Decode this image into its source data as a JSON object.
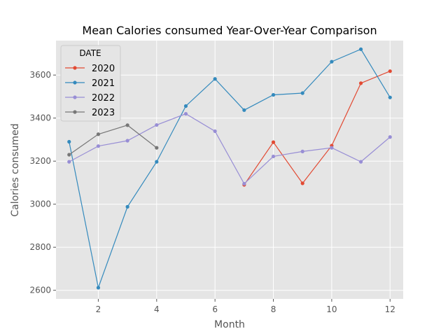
{
  "chart_data": {
    "type": "line",
    "title": "Mean Calories consumed Year-Over-Year Comparison",
    "xlabel": "Month",
    "ylabel": "Calories consumed",
    "xlim": [
      0.55,
      12.45
    ],
    "ylim": [
      2560,
      3760
    ],
    "xticks": [
      2,
      4,
      6,
      8,
      10,
      12
    ],
    "yticks": [
      2600,
      2800,
      3000,
      3200,
      3400,
      3600
    ],
    "grid": true,
    "legend": {
      "title": "DATE",
      "placement": "top-left"
    },
    "series": [
      {
        "name": "2020",
        "color": "#E24A33",
        "points": [
          [
            7,
            3090
          ],
          [
            8,
            3288
          ],
          [
            9,
            3097
          ],
          [
            10,
            3272
          ],
          [
            11,
            3562
          ],
          [
            12,
            3618
          ]
        ]
      },
      {
        "name": "2021",
        "color": "#348ABD",
        "points": [
          [
            1,
            3290
          ],
          [
            2,
            2612
          ],
          [
            3,
            2988
          ],
          [
            4,
            3197
          ],
          [
            5,
            3456
          ],
          [
            6,
            3582
          ],
          [
            7,
            3437
          ],
          [
            8,
            3508
          ],
          [
            9,
            3516
          ],
          [
            10,
            3662
          ],
          [
            11,
            3720
          ],
          [
            12,
            3496
          ]
        ]
      },
      {
        "name": "2022",
        "color": "#988ED5",
        "points": [
          [
            1,
            3197
          ],
          [
            2,
            3270
          ],
          [
            3,
            3295
          ],
          [
            4,
            3368
          ],
          [
            5,
            3420
          ],
          [
            6,
            3339
          ],
          [
            7,
            3095
          ],
          [
            8,
            3222
          ],
          [
            9,
            3245
          ],
          [
            10,
            3262
          ],
          [
            11,
            3197
          ],
          [
            12,
            3312
          ]
        ]
      },
      {
        "name": "2023",
        "color": "#777777",
        "points": [
          [
            1,
            3230
          ],
          [
            2,
            3325
          ],
          [
            3,
            3367
          ],
          [
            4,
            3262
          ]
        ]
      }
    ]
  }
}
